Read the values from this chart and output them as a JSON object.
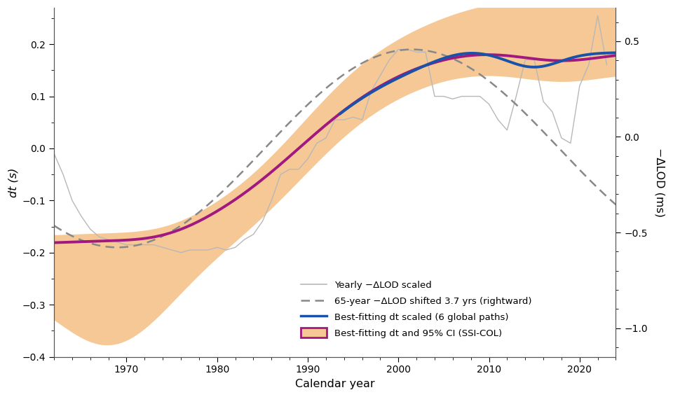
{
  "title": "",
  "xlabel": "Calendar year",
  "ylabel_left": "dt (s)",
  "ylabel_right": "−ΔLOD (ms)",
  "xlim": [
    1962,
    2024
  ],
  "ylim_left": [
    -0.4,
    0.27
  ],
  "ylim_right": [
    -1.15,
    0.675
  ],
  "background_color": "#ffffff",
  "colors": {
    "yearly_lod": "#b8b8b8",
    "shifted_lod": "#888888",
    "best_fit_blue": "#1a52a8",
    "best_fit_magenta": "#a01880",
    "ci_fill": "#f5c896",
    "ci_edge": "#e8a060"
  },
  "legend_labels": [
    "Yearly −ΔLOD scaled",
    "65-year −ΔLOD shifted 3.7 yrs (rightward)",
    "Best-fitting dt scaled (6 global paths)",
    "Best-fitting dt and 95% CI (SSI-COL)"
  ],
  "yticks_left": [
    -0.4,
    -0.3,
    -0.2,
    -0.1,
    0.0,
    0.1,
    0.2
  ],
  "yticks_right": [
    -1.0,
    -0.5,
    0.0,
    0.5
  ],
  "xticks": [
    1970,
    1980,
    1990,
    2000,
    2010,
    2020
  ],
  "yearly_years": [
    1962,
    1963,
    1964,
    1965,
    1966,
    1967,
    1968,
    1969,
    1970,
    1971,
    1972,
    1973,
    1974,
    1975,
    1976,
    1977,
    1978,
    1979,
    1980,
    1981,
    1982,
    1983,
    1984,
    1985,
    1986,
    1987,
    1988,
    1989,
    1990,
    1991,
    1992,
    1993,
    1994,
    1995,
    1996,
    1997,
    1998,
    1999,
    2000,
    2001,
    2002,
    2003,
    2004,
    2005,
    2006,
    2007,
    2008,
    2009,
    2010,
    2011,
    2012,
    2013,
    2014,
    2015,
    2016,
    2017,
    2018,
    2019,
    2020,
    2021,
    2022,
    2023
  ],
  "yearly_vals": [
    -0.01,
    -0.05,
    -0.1,
    -0.13,
    -0.155,
    -0.17,
    -0.175,
    -0.18,
    -0.185,
    -0.185,
    -0.185,
    -0.185,
    -0.19,
    -0.195,
    -0.2,
    -0.195,
    -0.195,
    -0.195,
    -0.19,
    -0.195,
    -0.19,
    -0.175,
    -0.165,
    -0.14,
    -0.1,
    -0.05,
    -0.04,
    -0.04,
    -0.02,
    0.01,
    0.02,
    0.055,
    0.055,
    0.06,
    0.055,
    0.11,
    0.14,
    0.17,
    0.19,
    0.19,
    0.185,
    0.185,
    0.1,
    0.1,
    0.095,
    0.1,
    0.1,
    0.1,
    0.085,
    0.055,
    0.035,
    0.1,
    0.17,
    0.17,
    0.09,
    0.07,
    0.02,
    0.01,
    0.12,
    0.16,
    0.255,
    0.16
  ]
}
